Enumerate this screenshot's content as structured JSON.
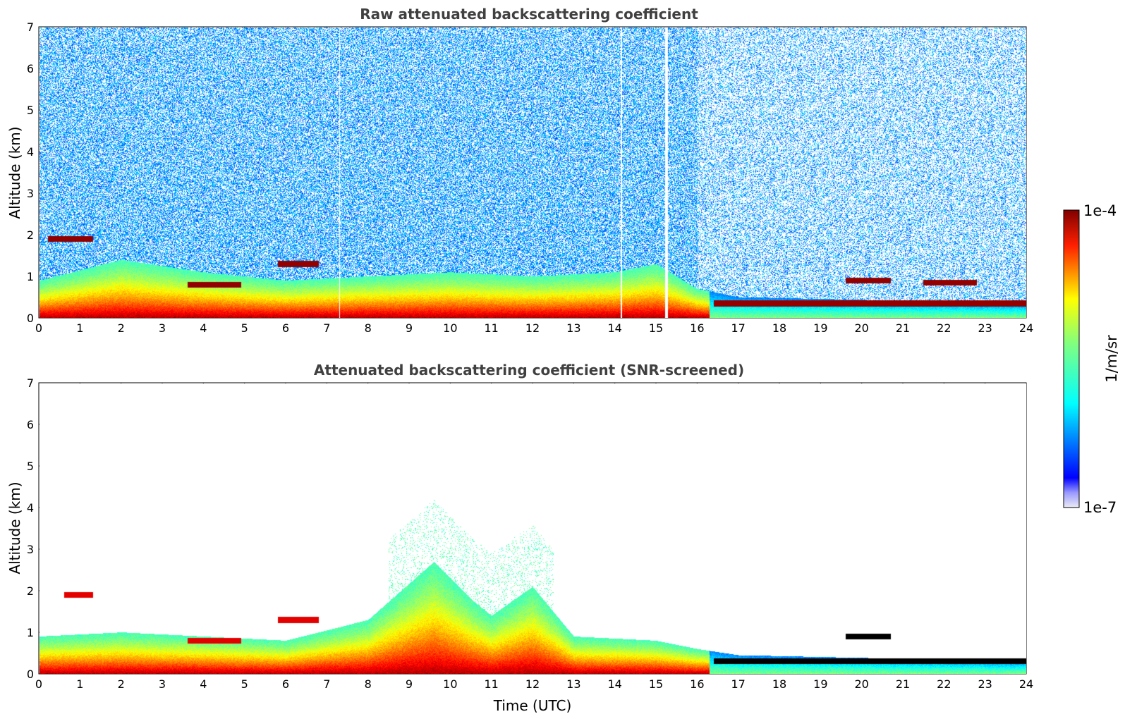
{
  "figure": {
    "colorbar": {
      "max_label": "1e-4",
      "min_label": "1e-7",
      "unit_label": "1/m/sr",
      "scale": "log",
      "colormap": "jet",
      "colors": [
        "#ebebf5",
        "#0000ff",
        "#00ffff",
        "#ffff00",
        "#ff0000",
        "#800000"
      ]
    }
  },
  "chart_data": [
    {
      "type": "heatmap",
      "title": "Raw attenuated backscattering coefficient",
      "xlabel": "",
      "ylabel": "Altitude (km)",
      "xlim": [
        0,
        24
      ],
      "ylim": [
        0,
        7
      ],
      "x_ticks": [
        "0",
        "1",
        "2",
        "3",
        "4",
        "5",
        "6",
        "7",
        "8",
        "9",
        "10",
        "11",
        "12",
        "13",
        "14",
        "15",
        "16",
        "17",
        "18",
        "19",
        "20",
        "21",
        "22",
        "23",
        "24"
      ],
      "y_ticks": [
        "0",
        "1",
        "2",
        "3",
        "4",
        "5",
        "6",
        "7"
      ],
      "grid": false,
      "screening": "raw",
      "boundary_layer_top_km": [
        [
          0,
          0.9
        ],
        [
          2,
          1.4
        ],
        [
          4,
          1.1
        ],
        [
          6,
          0.9
        ],
        [
          8,
          1.0
        ],
        [
          10,
          1.1
        ],
        [
          12,
          1.0
        ],
        [
          14,
          1.1
        ],
        [
          15,
          1.3
        ],
        [
          16,
          0.7
        ],
        [
          17,
          0.5
        ],
        [
          24,
          0.35
        ]
      ],
      "cloud_layers": [
        {
          "start": 0.2,
          "end": 1.3,
          "alt": 1.9
        },
        {
          "start": 3.6,
          "end": 4.9,
          "alt": 0.8
        },
        {
          "start": 5.8,
          "end": 6.8,
          "alt": 1.3
        },
        {
          "start": 16.4,
          "end": 24,
          "alt": 0.35
        },
        {
          "start": 19.6,
          "end": 20.7,
          "alt": 0.9
        },
        {
          "start": 21.5,
          "end": 22.8,
          "alt": 0.85
        }
      ]
    },
    {
      "type": "heatmap",
      "title": "Attenuated backscattering coefficient (SNR-screened)",
      "xlabel": "Time (UTC)",
      "ylabel": "Altitude (km)",
      "xlim": [
        0,
        24
      ],
      "ylim": [
        0,
        7
      ],
      "x_ticks": [
        "0",
        "1",
        "2",
        "3",
        "4",
        "5",
        "6",
        "7",
        "8",
        "9",
        "10",
        "11",
        "12",
        "13",
        "14",
        "15",
        "16",
        "17",
        "18",
        "19",
        "20",
        "21",
        "22",
        "23",
        "24"
      ],
      "y_ticks": [
        "0",
        "1",
        "2",
        "3",
        "4",
        "5",
        "6",
        "7"
      ],
      "grid": false,
      "screening": "snr",
      "boundary_layer_top_km": [
        [
          0,
          0.9
        ],
        [
          2,
          1.0
        ],
        [
          4,
          0.9
        ],
        [
          6,
          0.8
        ],
        [
          8,
          1.3
        ],
        [
          9.6,
          2.7
        ],
        [
          10.5,
          1.8
        ],
        [
          11,
          1.4
        ],
        [
          12,
          2.1
        ],
        [
          13,
          0.9
        ],
        [
          15,
          0.8
        ],
        [
          16,
          0.6
        ],
        [
          17,
          0.45
        ],
        [
          24,
          0.3
        ]
      ],
      "cloud_layers": [
        {
          "start": 0.6,
          "end": 1.3,
          "alt": 1.9
        },
        {
          "start": 3.6,
          "end": 4.9,
          "alt": 0.8
        },
        {
          "start": 5.8,
          "end": 6.8,
          "alt": 1.3
        },
        {
          "start": 16.4,
          "end": 24,
          "alt": 0.3
        },
        {
          "start": 19.6,
          "end": 20.7,
          "alt": 0.9
        }
      ]
    }
  ]
}
